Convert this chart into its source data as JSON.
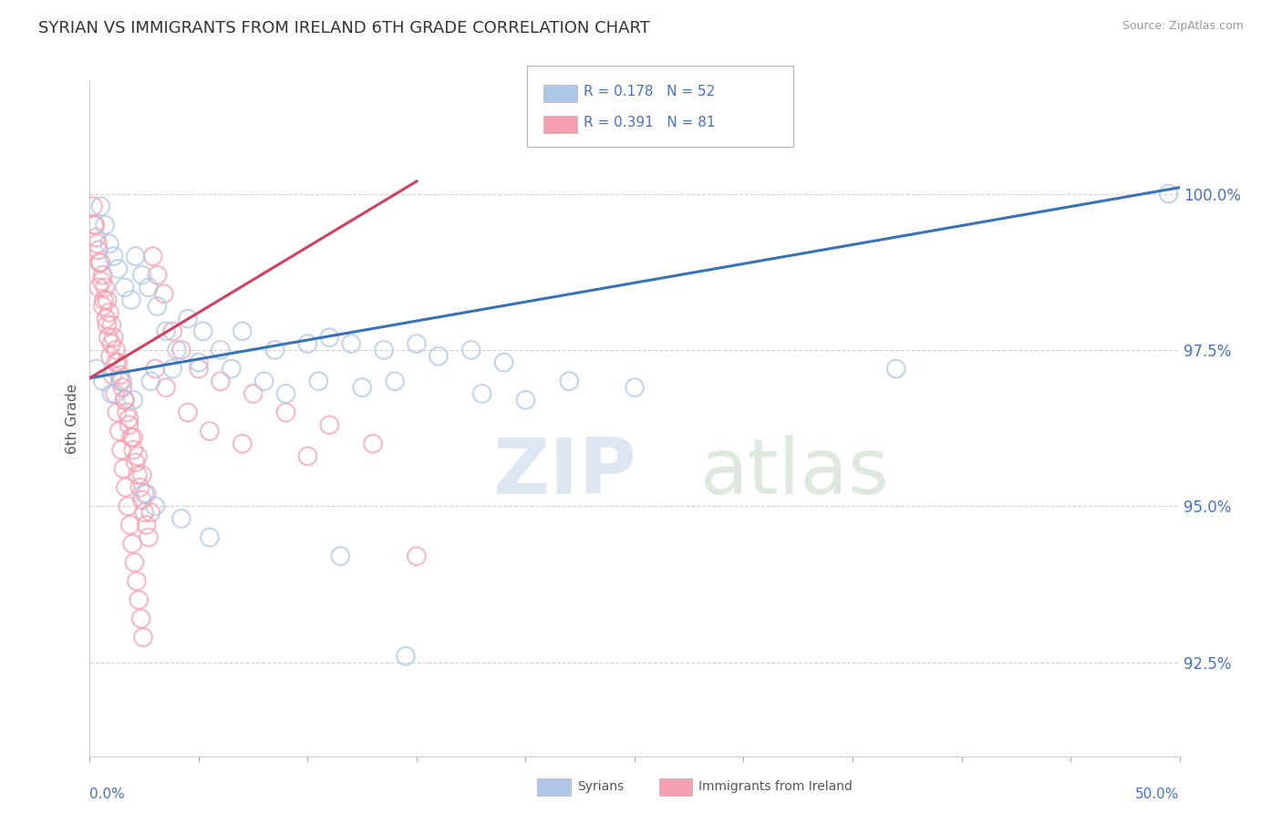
{
  "title": "SYRIAN VS IMMIGRANTS FROM IRELAND 6TH GRADE CORRELATION CHART",
  "source": "Source: ZipAtlas.com",
  "ylabel": "6th Grade",
  "xlim": [
    0.0,
    50.0
  ],
  "ylim": [
    91.0,
    101.8
  ],
  "yticks": [
    92.5,
    95.0,
    97.5,
    100.0
  ],
  "ytick_labels": [
    "92.5%",
    "95.0%",
    "97.5%",
    "100.0%"
  ],
  "legend_r1": "0.178",
  "legend_n1": "52",
  "legend_r2": "0.391",
  "legend_n2": "81",
  "blue_color": "#aec6e8",
  "pink_color": "#f4a0b0",
  "blue_line_color": "#3873b8",
  "pink_line_color": "#d04060",
  "background_color": "#ffffff",
  "blue_trend_x": [
    0,
    50
  ],
  "blue_trend_y": [
    97.05,
    100.1
  ],
  "pink_trend_x": [
    0,
    15
  ],
  "pink_trend_y": [
    97.05,
    100.2
  ],
  "syrians_x": [
    0.5,
    0.7,
    0.9,
    1.1,
    1.3,
    1.6,
    1.9,
    2.1,
    2.4,
    2.7,
    3.1,
    3.5,
    4.0,
    4.5,
    5.2,
    6.0,
    7.0,
    8.5,
    10.0,
    11.0,
    12.0,
    13.5,
    15.0,
    16.0,
    17.5,
    19.0,
    22.0,
    25.0,
    37.0,
    49.5,
    0.3,
    0.6,
    1.0,
    1.5,
    2.0,
    2.8,
    3.8,
    5.0,
    6.5,
    8.0,
    9.0,
    10.5,
    12.5,
    14.0,
    18.0,
    20.0,
    2.5,
    3.0,
    4.2,
    5.5,
    11.5,
    14.5
  ],
  "syrians_y": [
    99.8,
    99.5,
    99.2,
    99.0,
    98.8,
    98.5,
    98.3,
    99.0,
    98.7,
    98.5,
    98.2,
    97.8,
    97.5,
    98.0,
    97.8,
    97.5,
    97.8,
    97.5,
    97.6,
    97.7,
    97.6,
    97.5,
    97.6,
    97.4,
    97.5,
    97.3,
    97.0,
    96.9,
    97.2,
    100.0,
    97.2,
    97.0,
    96.8,
    97.0,
    96.7,
    97.0,
    97.2,
    97.3,
    97.2,
    97.0,
    96.8,
    97.0,
    96.9,
    97.0,
    96.8,
    96.7,
    95.2,
    95.0,
    94.8,
    94.5,
    94.2,
    92.6
  ],
  "ireland_x": [
    0.2,
    0.3,
    0.4,
    0.5,
    0.6,
    0.7,
    0.8,
    0.9,
    1.0,
    1.1,
    1.2,
    1.3,
    1.4,
    1.5,
    1.6,
    1.7,
    1.8,
    1.9,
    2.0,
    2.1,
    2.2,
    2.3,
    2.4,
    2.5,
    2.6,
    2.7,
    2.9,
    3.1,
    3.4,
    3.8,
    4.2,
    5.0,
    6.0,
    7.5,
    9.0,
    11.0,
    13.0,
    0.15,
    0.25,
    0.35,
    0.45,
    0.55,
    0.65,
    0.75,
    0.85,
    0.95,
    1.05,
    1.15,
    1.25,
    1.35,
    1.45,
    1.55,
    1.65,
    1.75,
    1.85,
    1.95,
    2.05,
    2.15,
    2.25,
    2.35,
    2.45,
    0.4,
    0.6,
    0.8,
    1.0,
    1.2,
    1.4,
    1.6,
    1.8,
    2.0,
    2.2,
    2.4,
    2.6,
    2.8,
    3.0,
    3.5,
    4.5,
    5.5,
    7.0,
    10.0,
    15.0
  ],
  "ireland_y": [
    99.5,
    99.3,
    99.1,
    98.9,
    98.7,
    98.5,
    98.3,
    98.1,
    97.9,
    97.7,
    97.5,
    97.3,
    97.1,
    96.9,
    96.7,
    96.5,
    96.3,
    96.1,
    95.9,
    95.7,
    95.5,
    95.3,
    95.1,
    94.9,
    94.7,
    94.5,
    99.0,
    98.7,
    98.4,
    97.8,
    97.5,
    97.2,
    97.0,
    96.8,
    96.5,
    96.3,
    96.0,
    99.8,
    99.5,
    99.2,
    98.9,
    98.6,
    98.3,
    98.0,
    97.7,
    97.4,
    97.1,
    96.8,
    96.5,
    96.2,
    95.9,
    95.6,
    95.3,
    95.0,
    94.7,
    94.4,
    94.1,
    93.8,
    93.5,
    93.2,
    92.9,
    98.5,
    98.2,
    97.9,
    97.6,
    97.3,
    97.0,
    96.7,
    96.4,
    96.1,
    95.8,
    95.5,
    95.2,
    94.9,
    97.2,
    96.9,
    96.5,
    96.2,
    96.0,
    95.8,
    94.2
  ]
}
